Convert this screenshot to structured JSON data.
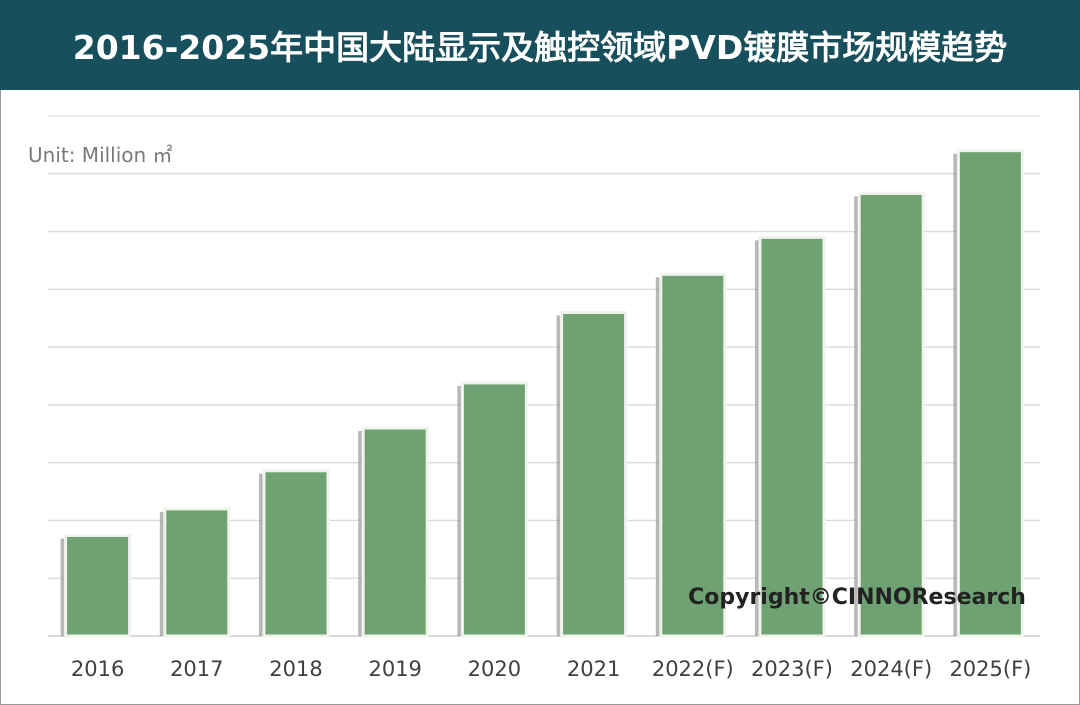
{
  "title": "2016-2025年中国大陆显示及触控领域PVD镀膜市场规模趋势",
  "chart_data": {
    "type": "bar",
    "title": "2016-2025年中国大陆显示及触控领域PVD镀膜市场规模趋势",
    "unit_label": "Unit: Million ㎡",
    "categories": [
      "2016",
      "2017",
      "2018",
      "2019",
      "2020",
      "2021",
      "2022(F)",
      "2023(F)",
      "2024(F)",
      "2025(F)"
    ],
    "values": [
      1.74,
      2.2,
      2.86,
      3.6,
      4.38,
      5.6,
      6.26,
      6.9,
      7.66,
      8.4
    ],
    "ylim": [
      0,
      9
    ],
    "y_tick_labels_shown": false,
    "grid": true,
    "bar_color": "#6fa273",
    "watermark": "Copyright©CINNOResearch"
  },
  "colors": {
    "title_bg": "#17505c",
    "title_text": "#ffffff",
    "grid": "#d9d9d9"
  }
}
